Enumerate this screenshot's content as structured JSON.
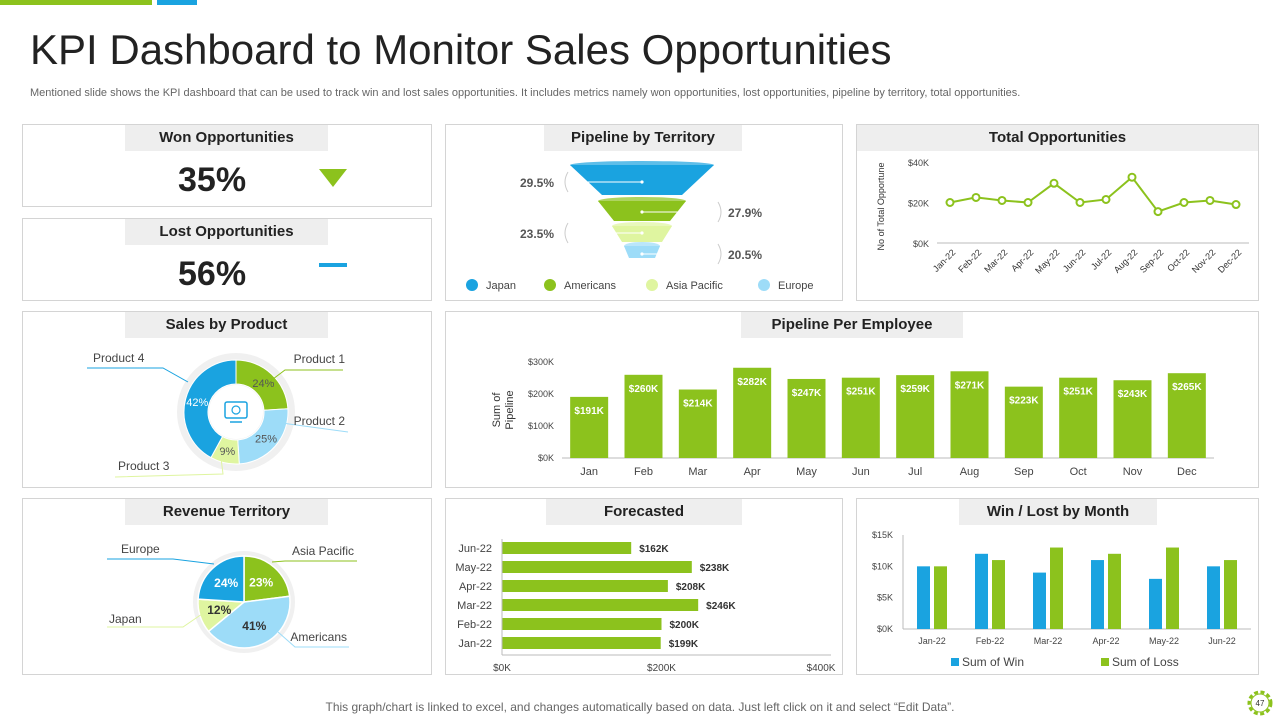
{
  "page": {
    "title": "KPI Dashboard to Monitor Sales Opportunities",
    "subtitle": "Mentioned slide shows the KPI dashboard that can be used to track win and lost sales opportunities. It includes metrics namely won opportunities, lost opportunities, pipeline by territory,  total opportunities.",
    "footer": "This graph/chart is linked to excel, and changes automatically based on data. Just left click on it and select “Edit Data”.",
    "page_number": "47"
  },
  "colors": {
    "green": "#8cc21d",
    "blue": "#1aa3e0",
    "light_blue": "#9ddcf8",
    "light_green": "#dff5a0",
    "dark_green": "#6fa70f"
  },
  "won": {
    "label": "Won Opportunities",
    "value": "35%",
    "icon": "triangle-down-icon"
  },
  "lost": {
    "label": "Lost Opportunities",
    "value": "56%",
    "icon": "dash-icon"
  },
  "pipeline_territory": {
    "label": "Pipeline by Territory",
    "legend": [
      "Japan",
      "Americans",
      "Asia Pacific",
      "Europe"
    ]
  },
  "total_opportunities": {
    "label": "Total Opportunities"
  },
  "sales_by_product": {
    "label": "Sales by Product"
  },
  "pipeline_employee": {
    "label": "Pipeline Per Employee"
  },
  "revenue_territory": {
    "label": "Revenue Territory"
  },
  "forecasted": {
    "label": "Forecasted"
  },
  "win_lost": {
    "label": "Win / Lost by Month"
  },
  "chart_data": [
    {
      "id": "pipeline-by-territory",
      "type": "funnel",
      "title": "Pipeline by Territory",
      "categories": [
        "Japan",
        "Americans",
        "Asia Pacific",
        "Europe"
      ],
      "values": [
        29.5,
        27.9,
        23.5,
        20.5
      ],
      "labels": [
        "29.5%",
        "27.9%",
        "23.5%",
        "20.5%"
      ]
    },
    {
      "id": "total-opportunities",
      "type": "line",
      "title": "Total Opportunities",
      "ylabel": "No of Total Opportune",
      "categories": [
        "Jan-22",
        "Feb-22",
        "Mar-22",
        "Apr-22",
        "May-22",
        "Jun-22",
        "Jul-22",
        "Aug-22",
        "Sep-22",
        "Oct-22",
        "Nov-22",
        "Dec-22"
      ],
      "values": [
        20000,
        22500,
        21000,
        20000,
        29500,
        20000,
        21500,
        32500,
        15500,
        20000,
        21000,
        19000
      ],
      "ylim": [
        0,
        40000
      ],
      "yticks": [
        "$0K",
        "$20K",
        "$40K"
      ]
    },
    {
      "id": "sales-by-product",
      "type": "pie",
      "title": "Sales by Product",
      "categories": [
        "Product 1",
        "Product 2",
        "Product 3",
        "Product 4"
      ],
      "values": [
        24,
        25,
        9,
        42
      ],
      "labels": [
        "24%",
        "25%",
        "9%",
        "42%"
      ]
    },
    {
      "id": "pipeline-per-employee",
      "type": "bar",
      "title": "Pipeline Per Employee",
      "ylabel": "Sum of Pipeline",
      "categories": [
        "Jan",
        "Feb",
        "Mar",
        "Apr",
        "May",
        "Jun",
        "Jul",
        "Aug",
        "Sep",
        "Oct",
        "Nov",
        "Dec"
      ],
      "values": [
        191,
        260,
        214,
        282,
        247,
        251,
        259,
        271,
        223,
        251,
        243,
        265
      ],
      "labels": [
        "$191K",
        "$260K",
        "$214K",
        "$282K",
        "$247K",
        "$251K",
        "$259K",
        "$271K",
        "$223K",
        "$251K",
        "$243K",
        "$265K"
      ],
      "ylim": [
        0,
        300
      ],
      "yticks": [
        "$0K",
        "$100K",
        "$200K",
        "$300K"
      ]
    },
    {
      "id": "revenue-territory",
      "type": "pie",
      "title": "Revenue Territory",
      "categories": [
        "Asia Pacific",
        "Americans",
        "Japan",
        "Europe"
      ],
      "values": [
        23,
        41,
        12,
        24
      ],
      "labels": [
        "23%",
        "41%",
        "12%",
        "24%"
      ]
    },
    {
      "id": "forecasted",
      "type": "bar",
      "orientation": "horizontal",
      "title": "Forecasted",
      "categories": [
        "Jun-22",
        "May-22",
        "Apr-22",
        "Mar-22",
        "Feb-22",
        "Jan-22"
      ],
      "values": [
        162,
        238,
        208,
        246,
        200,
        199
      ],
      "labels": [
        "$162K",
        "$238K",
        "$208K",
        "$246K",
        "$200K",
        "$199K"
      ],
      "xlim": [
        0,
        400
      ],
      "xticks": [
        "$0K",
        "$200K",
        "$400K"
      ]
    },
    {
      "id": "win-lost-by-month",
      "type": "bar",
      "title": "Win / Lost by Month",
      "categories": [
        "Jan-22",
        "Feb-22",
        "Mar-22",
        "Apr-22",
        "May-22",
        "Jun-22"
      ],
      "series": [
        {
          "name": "Sum of Win",
          "values": [
            10,
            12,
            9,
            11,
            8,
            10
          ]
        },
        {
          "name": "Sum of Loss",
          "values": [
            10,
            11,
            13,
            12,
            13,
            11
          ]
        }
      ],
      "ylim": [
        0,
        15
      ],
      "yticks": [
        "$0K",
        "$5K",
        "$10K",
        "$15K"
      ],
      "legend": [
        "Sum of Win",
        "Sum of Loss"
      ]
    }
  ]
}
